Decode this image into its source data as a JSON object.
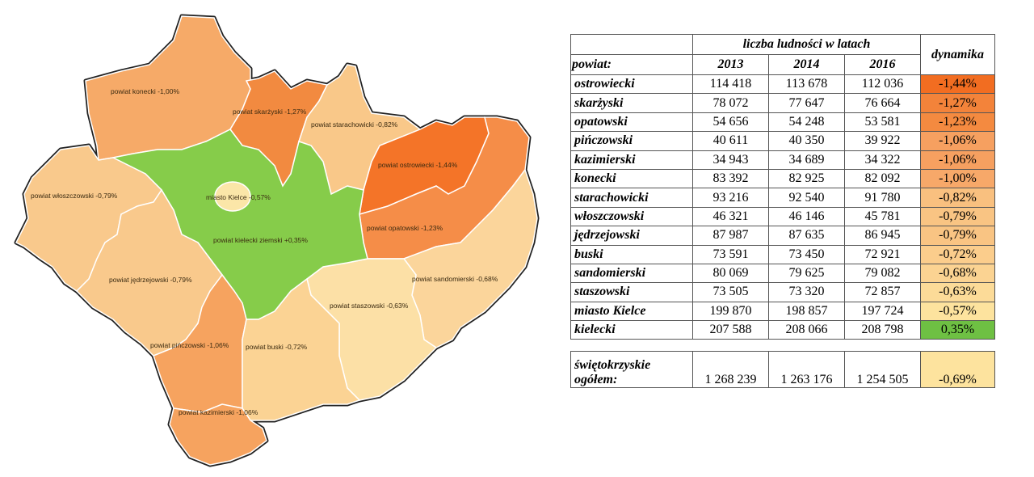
{
  "map": {
    "regions": [
      {
        "id": "konecki",
        "label": "powiat konecki -1,00%",
        "color": "#f6aa68"
      },
      {
        "id": "skarzyski",
        "label": "powiat skarżyski -1,27%",
        "color": "#f28a40"
      },
      {
        "id": "starachowicki",
        "label": "powiat starachowicki -0,82%",
        "color": "#f9c889"
      },
      {
        "id": "ostrowiecki",
        "label": "powiat ostrowiecki -1,44%",
        "color": "#f47428"
      },
      {
        "id": "opatowski",
        "label": "powiat opatowski -1,23%",
        "color": "#f58d48"
      },
      {
        "id": "sandomierski",
        "label": "powiat sandomierski -0,68%",
        "color": "#fbd59b"
      },
      {
        "id": "staszowski",
        "label": "powiat staszowski -0,63%",
        "color": "#fce0a6"
      },
      {
        "id": "kielecki",
        "label": "powiat kielecki ziemski +0,35%",
        "color": "#86cc4a"
      },
      {
        "id": "wloszczowski",
        "label": "powiat włoszczowski -0,79%",
        "color": "#f9c98c"
      },
      {
        "id": "jedrzejowski",
        "label": "powiat jędrzejowski -0,79%",
        "color": "#f9c98c"
      },
      {
        "id": "pinczowski",
        "label": "powiat pińczowski -1,06%",
        "color": "#f6a35f"
      },
      {
        "id": "buski",
        "label": "powiat buski -0,72%",
        "color": "#fbd394"
      },
      {
        "id": "kazimierski",
        "label": "powiat kazimierski -1,06%",
        "color": "#f6a35f"
      },
      {
        "id": "kielce",
        "label": "miasto Kielce -0,57%",
        "color": "#fbe6a8"
      }
    ]
  },
  "table": {
    "group_header": "liczba ludności w latach",
    "powiat_header": "powiat:",
    "years": [
      "2013",
      "2014",
      "2016"
    ],
    "dynamics_header": "dynamika",
    "rows": [
      {
        "name": "ostrowiecki",
        "v": [
          "114 418",
          "113 678",
          "112 036"
        ],
        "dyn": "-1,44%",
        "color": "#f26d21"
      },
      {
        "name": "skarżyski",
        "v": [
          "78 072",
          "77 647",
          "76 664"
        ],
        "dyn": "-1,27%",
        "color": "#f3833a"
      },
      {
        "name": "opatowski",
        "v": [
          "54 656",
          "54 248",
          "53 581"
        ],
        "dyn": "-1,23%",
        "color": "#f48a40"
      },
      {
        "name": "pińczowski",
        "v": [
          "40 611",
          "40 350",
          "39 922"
        ],
        "dyn": "-1,06%",
        "color": "#f6a060"
      },
      {
        "name": "kazimierski",
        "v": [
          "34 943",
          "34 689",
          "34 322"
        ],
        "dyn": "-1,06%",
        "color": "#f6a060"
      },
      {
        "name": "konecki",
        "v": [
          "83 392",
          "82 925",
          "82 092"
        ],
        "dyn": "-1,00%",
        "color": "#f7a869"
      },
      {
        "name": "starachowicki",
        "v": [
          "93 216",
          "92 540",
          "91 780"
        ],
        "dyn": "-0,82%",
        "color": "#f9c07f"
      },
      {
        "name": "włoszczowski",
        "v": [
          "46 321",
          "46 146",
          "45 781"
        ],
        "dyn": "-0,79%",
        "color": "#f9c483"
      },
      {
        "name": "jędrzejowski",
        "v": [
          "87 987",
          "87 635",
          "86 945"
        ],
        "dyn": "-0,79%",
        "color": "#f9c483"
      },
      {
        "name": "buski",
        "v": [
          "73 591",
          "73 450",
          "72 921"
        ],
        "dyn": "-0,72%",
        "color": "#fbcd8c"
      },
      {
        "name": "sandomierski",
        "v": [
          "80 069",
          "79 625",
          "79 082"
        ],
        "dyn": "-0,68%",
        "color": "#fbd392"
      },
      {
        "name": "staszowski",
        "v": [
          "73 505",
          "73 320",
          "72 857"
        ],
        "dyn": "-0,63%",
        "color": "#fcdb98"
      },
      {
        "name": "miasto Kielce",
        "v": [
          "199 870",
          "198 857",
          "197 724"
        ],
        "dyn": "-0,57%",
        "color": "#fde39e"
      },
      {
        "name": "kielecki",
        "v": [
          "207 588",
          "208 066",
          "208 798"
        ],
        "dyn": "0,35%",
        "color": "#6ec043"
      }
    ],
    "total": {
      "name_line1": "świętokrzyskie",
      "name_line2": "ogółem:",
      "v": [
        "1 268 239",
        "1 263 176",
        "1 254 505"
      ],
      "dyn": "-0,69%",
      "color": "#fde39e"
    }
  }
}
